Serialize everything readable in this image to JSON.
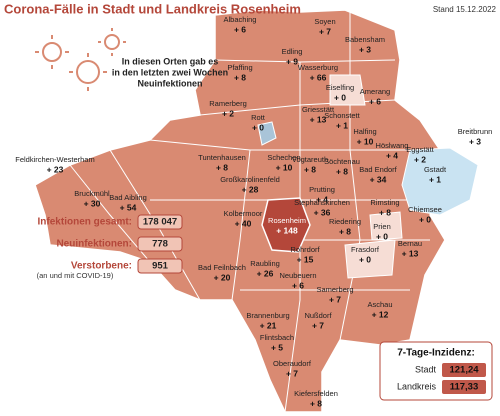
{
  "header": {
    "title": "Corona-Fälle in Stadt und Landkreis Rosenheim",
    "date": "Stand 15.12.2022"
  },
  "legend": {
    "lines": [
      "In diesen Orten gab es",
      "in den letzten zwei Wochen",
      "Neuinfektionen"
    ]
  },
  "places": [
    {
      "name": "Albaching",
      "cases": "+ 6"
    },
    {
      "name": "Soyen",
      "cases": "+ 7"
    },
    {
      "name": "Babensham",
      "cases": "+ 3"
    },
    {
      "name": "Edling",
      "cases": "+ 9"
    },
    {
      "name": "Pfaffing",
      "cases": "+ 8"
    },
    {
      "name": "Wasserburg",
      "cases": "+ 66"
    },
    {
      "name": "Eiselfing",
      "cases": "+ 0"
    },
    {
      "name": "Amerang",
      "cases": "+ 6"
    },
    {
      "name": "Ramerberg",
      "cases": "+ 2"
    },
    {
      "name": "Rott",
      "cases": "+ 0"
    },
    {
      "name": "Griesstätt",
      "cases": "+ 13"
    },
    {
      "name": "Schonstett",
      "cases": "+ 1"
    },
    {
      "name": "Halfing",
      "cases": "+ 10"
    },
    {
      "name": "Höslwang",
      "cases": "+ 4"
    },
    {
      "name": "Eggstätt",
      "cases": "+ 2"
    },
    {
      "name": "Breitbrunn",
      "cases": "+ 3"
    },
    {
      "name": "Tuntenhausen",
      "cases": "+ 8"
    },
    {
      "name": "Feldkirchen-Westerham",
      "cases": "+ 23"
    },
    {
      "name": "Schechen",
      "cases": "+ 10"
    },
    {
      "name": "Vogtareuth",
      "cases": "+ 8"
    },
    {
      "name": "Söchtenau",
      "cases": "+ 8"
    },
    {
      "name": "Bad Endorf",
      "cases": "+ 34"
    },
    {
      "name": "Gstadt",
      "cases": "+ 1"
    },
    {
      "name": "Großkarolinenfeld",
      "cases": "+ 28"
    },
    {
      "name": "Bruckmühl",
      "cases": "+ 30"
    },
    {
      "name": "Bad Aibling",
      "cases": "+ 54"
    },
    {
      "name": "Prutting",
      "cases": "+ 4"
    },
    {
      "name": "Kolbermoor",
      "cases": "+ 40"
    },
    {
      "name": "Rosenheim",
      "cases": "+ 148"
    },
    {
      "name": "Stephanskirchen",
      "cases": "+ 36"
    },
    {
      "name": "Rimsting",
      "cases": "+ 8"
    },
    {
      "name": "Chiemsee",
      "cases": "+ 0"
    },
    {
      "name": "Riedering",
      "cases": "+ 8"
    },
    {
      "name": "Prien",
      "cases": "+ 0"
    },
    {
      "name": "Frasdorf",
      "cases": "+ 0"
    },
    {
      "name": "Bernau",
      "cases": "+ 13"
    },
    {
      "name": "Bad Feilnbach",
      "cases": "+ 20"
    },
    {
      "name": "Raubling",
      "cases": "+ 26"
    },
    {
      "name": "Rohrdorf",
      "cases": "+ 15"
    },
    {
      "name": "Neubeuern",
      "cases": "+ 6"
    },
    {
      "name": "Samerberg",
      "cases": "+ 7"
    },
    {
      "name": "Brannenburg",
      "cases": "+ 21"
    },
    {
      "name": "Nußdorf",
      "cases": "+ 7"
    },
    {
      "name": "Aschau",
      "cases": "+ 12"
    },
    {
      "name": "Flintsbach",
      "cases": "+ 5"
    },
    {
      "name": "Oberaudorf",
      "cases": "+ 7"
    },
    {
      "name": "Kiefersfelden",
      "cases": "+ 8"
    }
  ],
  "stats": [
    {
      "label": "Infektionen gesamt:",
      "value": "178 047"
    },
    {
      "label": "Neuinfektionen:",
      "value": "778"
    },
    {
      "label": "Verstorbene:",
      "value": "951",
      "note": "(an und mit COVID-19)"
    }
  ],
  "incidence": {
    "title": "7-Tage-Inzidenz:",
    "rows": [
      {
        "label": "Stadt",
        "value": "121,24"
      },
      {
        "label": "Landkreis",
        "value": "117,33"
      }
    ]
  }
}
